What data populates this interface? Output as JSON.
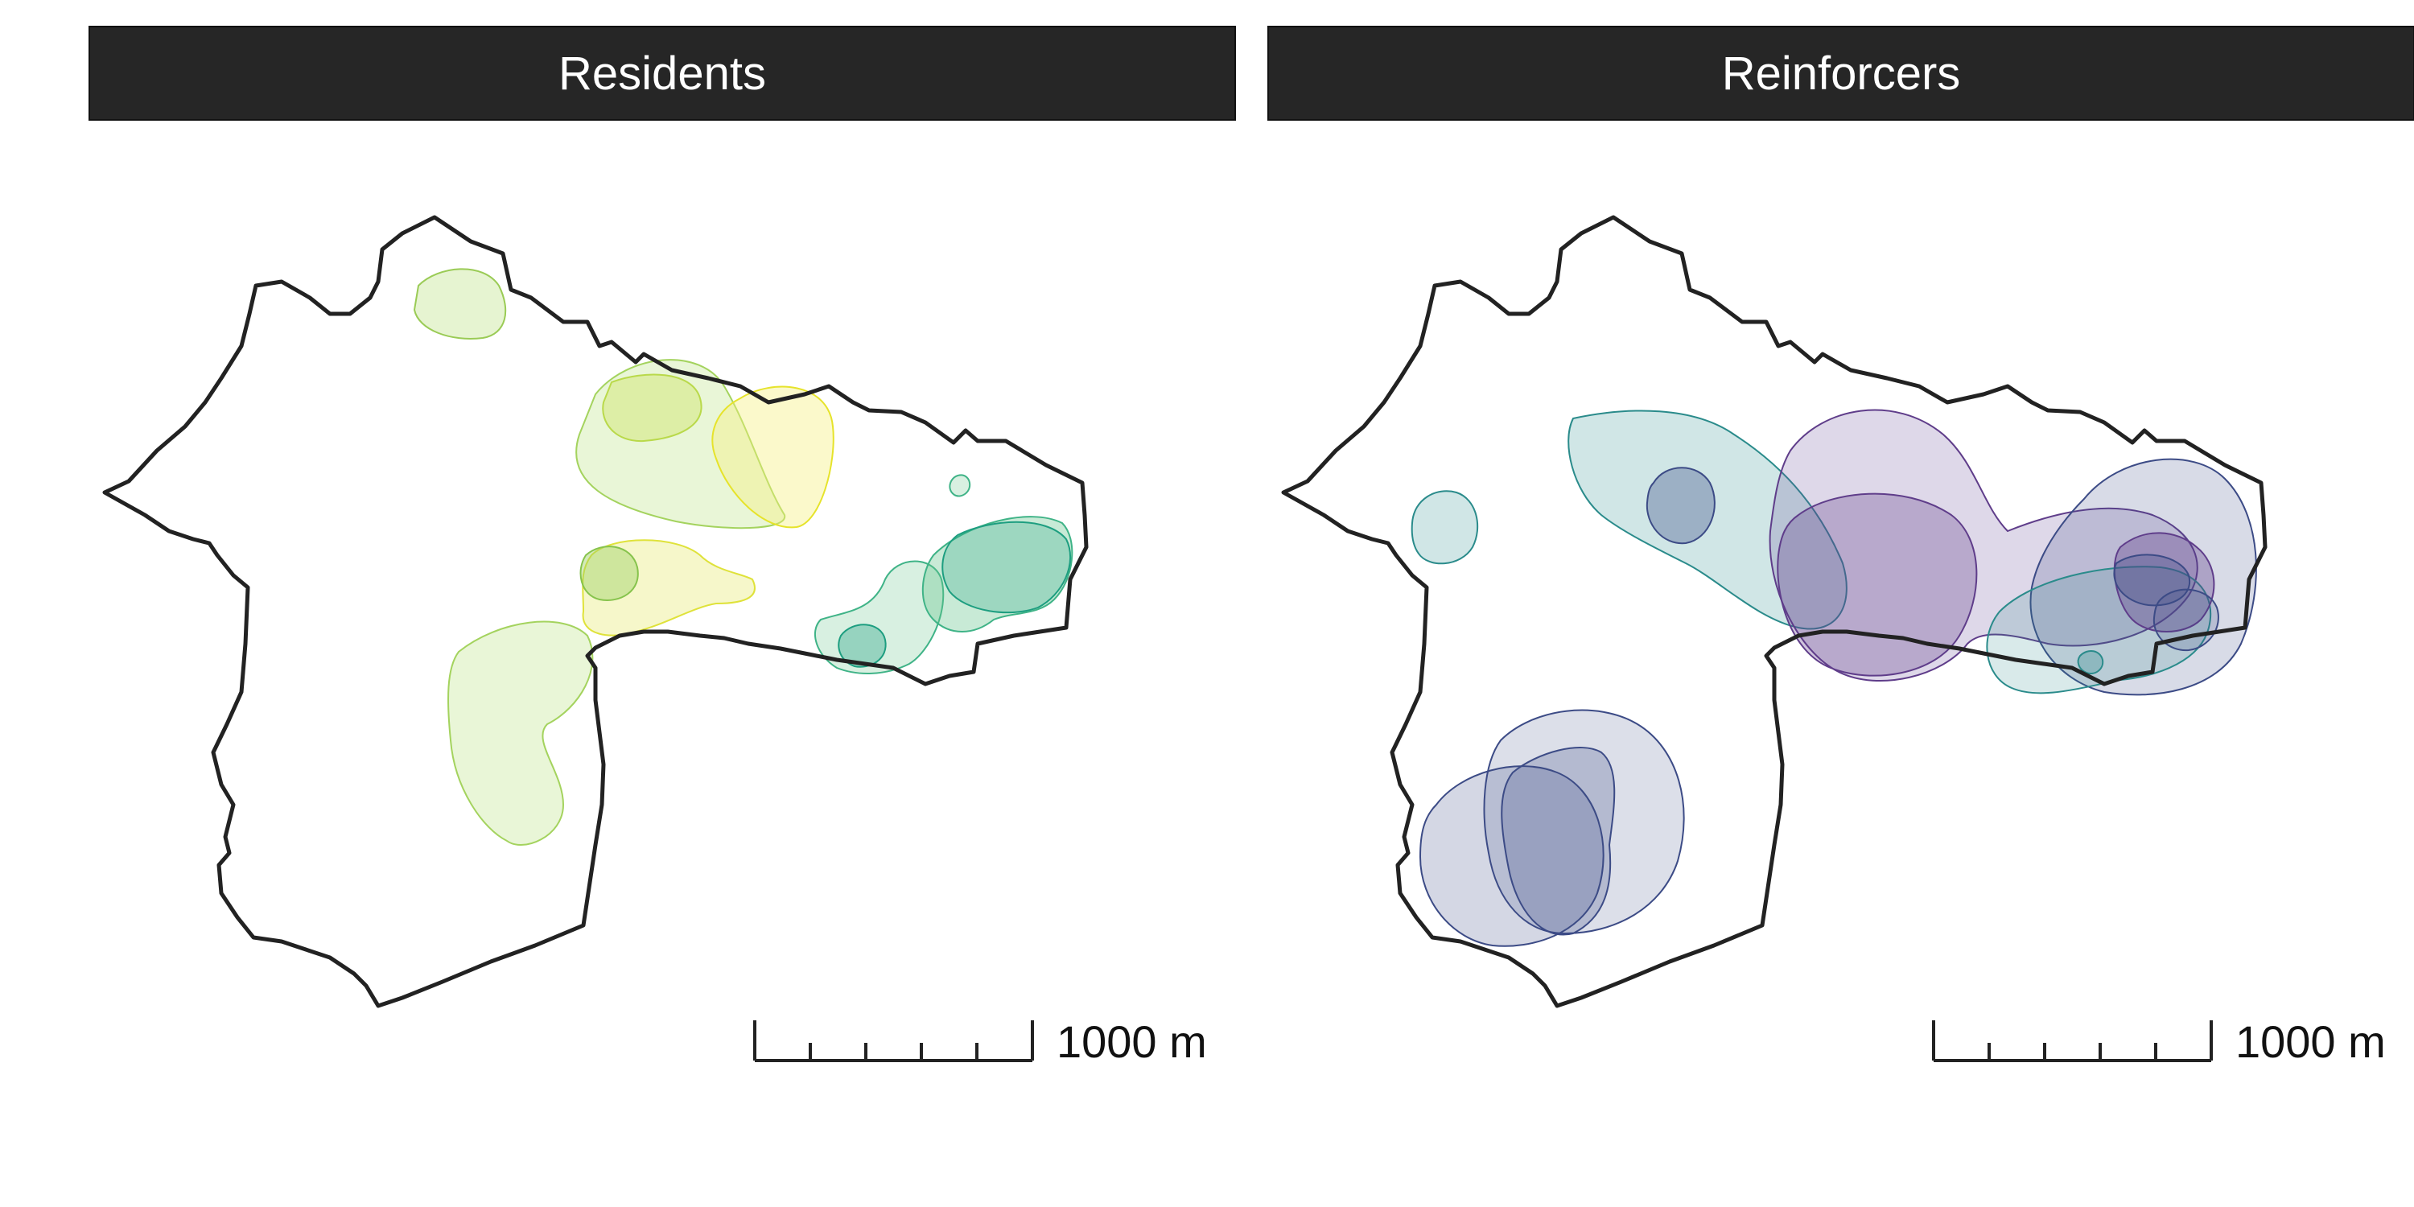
{
  "panels": [
    {
      "title": "Residents",
      "scale_bar": {
        "label": "1000 m",
        "segments": 5
      },
      "palette": [
        "#b7e07a",
        "#e8ea2a",
        "#62c489",
        "#1d9e80"
      ]
    },
    {
      "title": "Reinforcers",
      "scale_bar": {
        "label": "1000 m",
        "segments": 5
      },
      "palette": [
        "#2a8b8b",
        "#6b4d99",
        "#5f3d8a",
        "#3c4b86",
        "#2b3f7a"
      ]
    }
  ],
  "colors": {
    "boundary": "#222222",
    "strip_background": "#262626",
    "strip_text": "#ffffff"
  }
}
